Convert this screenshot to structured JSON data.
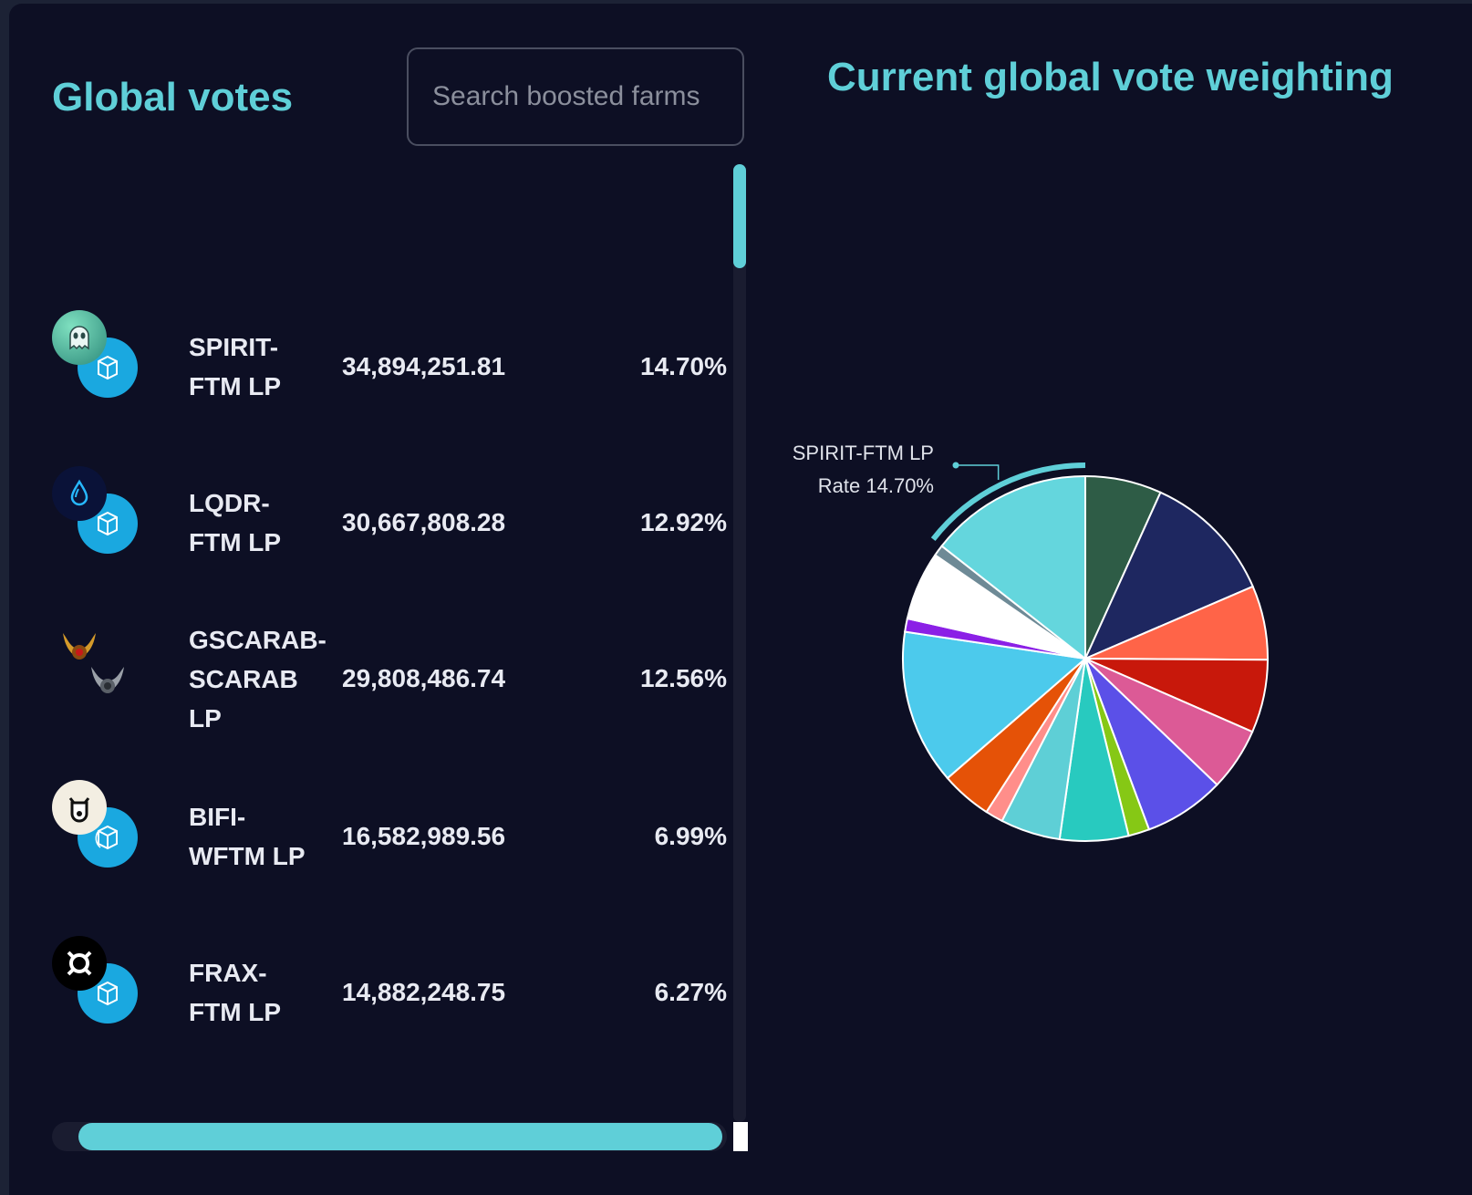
{
  "left": {
    "title": "Global votes",
    "search_placeholder": "Search boosted farms"
  },
  "right": {
    "title": "Current global vote weighting",
    "highlight": {
      "name": "SPIRIT-FTM LP",
      "rate": "Rate 14.70%"
    }
  },
  "farms": [
    {
      "pair_lines": [
        "SPIRIT-",
        "FTM LP"
      ],
      "votes": "34,894,251.81",
      "share": "14.70%",
      "icon_a": "spirit-ghost-icon",
      "icon_b": "fantom-icon"
    },
    {
      "pair_lines": [
        "LQDR-",
        "FTM LP"
      ],
      "votes": "30,667,808.28",
      "share": "12.92%",
      "icon_a": "liquid-drop-icon",
      "icon_b": "fantom-icon"
    },
    {
      "pair_lines": [
        "GSCARAB-",
        "SCARAB",
        "LP"
      ],
      "votes": "29,808,486.74",
      "share": "12.56%",
      "icon_a": "gold-scarab-icon",
      "icon_b": "silver-scarab-icon"
    },
    {
      "pair_lines": [
        "BIFI-",
        "WFTM LP"
      ],
      "votes": "16,582,989.56",
      "share": "6.99%",
      "icon_a": "beefy-cow-icon",
      "icon_b": "wrapped-fantom-icon"
    },
    {
      "pair_lines": [
        "FRAX-",
        "FTM LP"
      ],
      "votes": "14,882,248.75",
      "share": "6.27%",
      "icon_a": "frax-icon",
      "icon_b": "fantom-icon"
    }
  ],
  "chart_data": {
    "type": "pie",
    "title": "Current global vote weighting",
    "slices": [
      {
        "value": 6.9,
        "color": "#2e5c46"
      },
      {
        "value": 12.0,
        "color": "#1e2760"
      },
      {
        "value": 6.7,
        "color": "#ff6448"
      },
      {
        "value": 6.6,
        "color": "#c8180b"
      },
      {
        "value": 5.7,
        "color": "#dc5a96"
      },
      {
        "value": 7.3,
        "color": "#5b50e8"
      },
      {
        "value": 1.9,
        "color": "#86c815"
      },
      {
        "value": 6.2,
        "color": "#28cabf"
      },
      {
        "value": 5.4,
        "color": "#5ecfd6"
      },
      {
        "value": 1.6,
        "color": "#ff8e8a"
      },
      {
        "value": 4.6,
        "color": "#e55207"
      },
      {
        "value": 14.0,
        "color": "#4ccaec"
      },
      {
        "value": 1.2,
        "color": "#8b20e6"
      },
      {
        "value": 6.2,
        "color": "#ffffff"
      },
      {
        "value": 1.0,
        "color": "#6e8a96"
      },
      {
        "value": 14.7,
        "color": "#64d6dd",
        "name": "SPIRIT-FTM LP"
      }
    ],
    "highlighted_slice": "SPIRIT-FTM LP",
    "highlighted_rate": "Rate 14.70%"
  }
}
